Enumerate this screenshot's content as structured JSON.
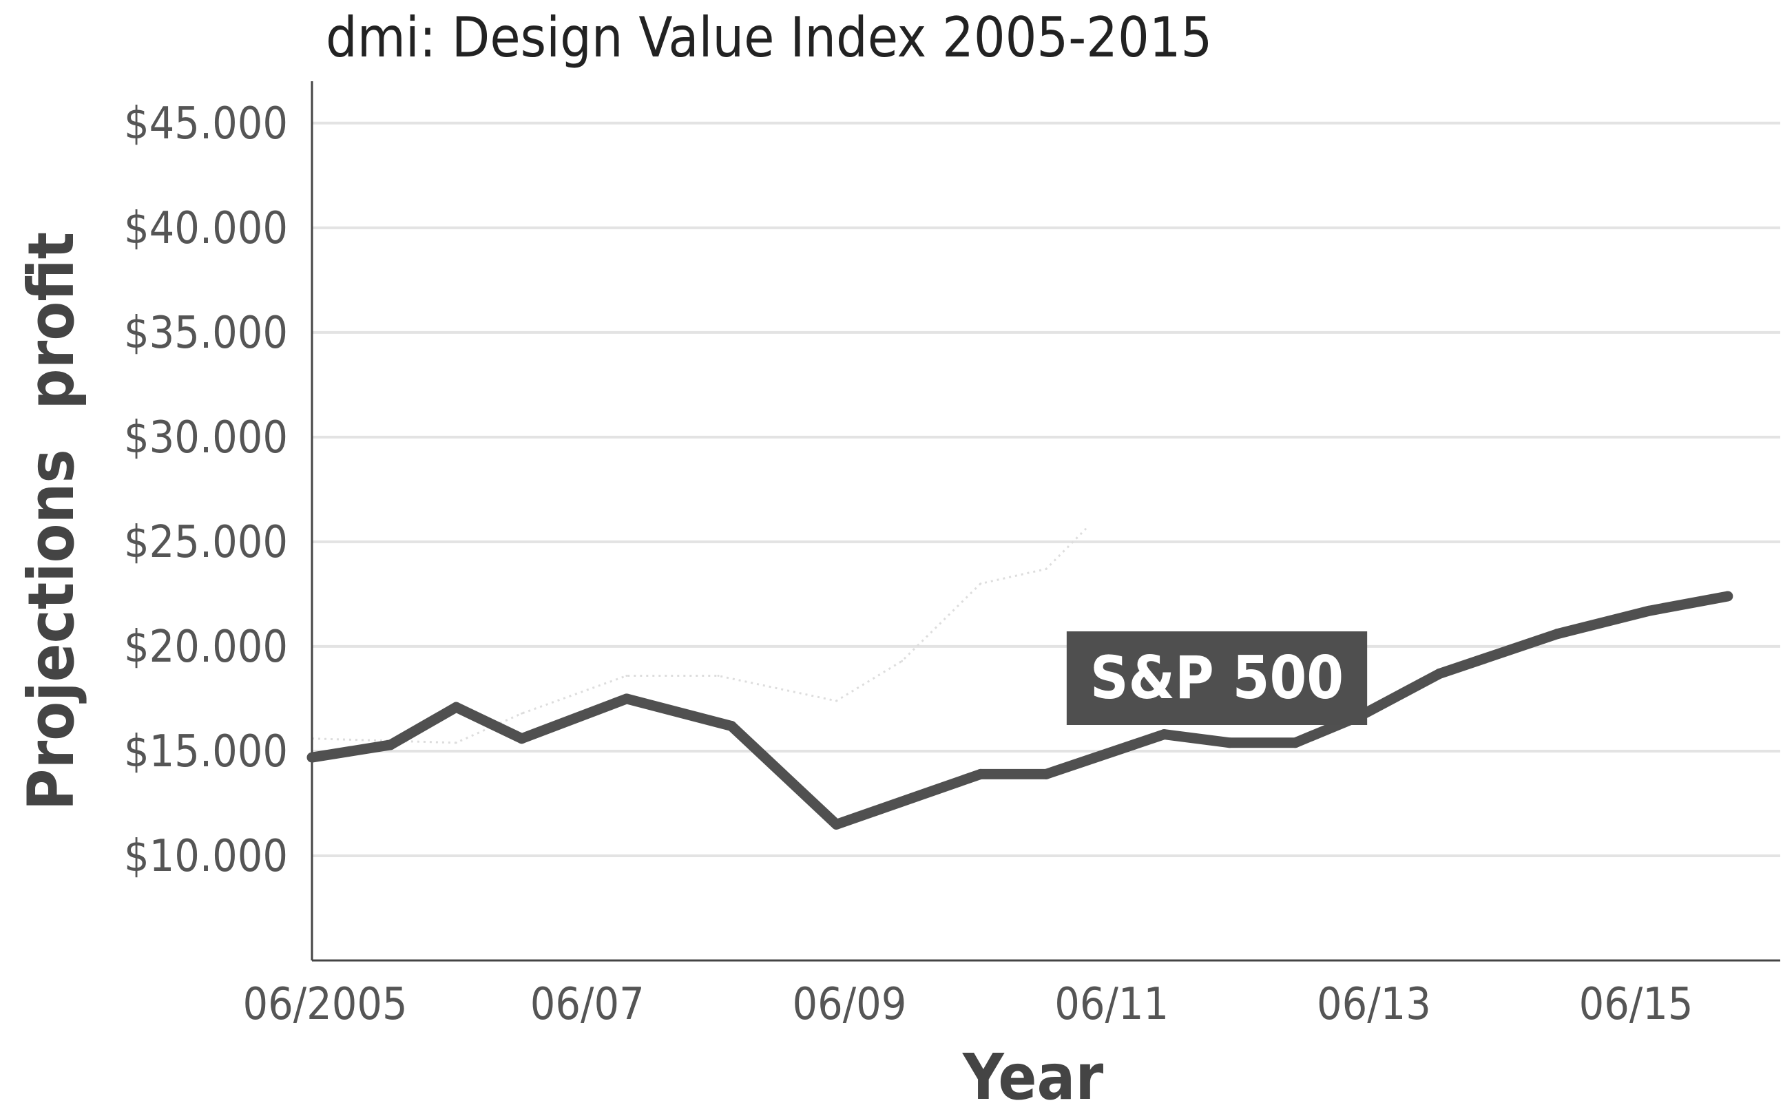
{
  "chart_data": {
    "type": "line",
    "title": "dmi: Design Value Index 2005-2015",
    "xlabel": "Year",
    "ylabel": "Projections  profit",
    "ylim": [
      5000,
      47000
    ],
    "y_ticks": [
      {
        "value": 10000,
        "label": "$10.000"
      },
      {
        "value": 15000,
        "label": "$15.000"
      },
      {
        "value": 20000,
        "label": "$20.000"
      },
      {
        "value": 25000,
        "label": "$25.000"
      },
      {
        "value": 30000,
        "label": "$30.000"
      },
      {
        "value": 35000,
        "label": "$35.000"
      },
      {
        "value": 40000,
        "label": "$40.000"
      },
      {
        "value": 45000,
        "label": "$45.000"
      }
    ],
    "xlim": [
      2005.5,
      2016.7
    ],
    "x_ticks": [
      {
        "value": 2005.6,
        "label": "06/2005"
      },
      {
        "value": 2007.6,
        "label": "06/07"
      },
      {
        "value": 2009.6,
        "label": "06/09"
      },
      {
        "value": 2011.6,
        "label": "06/11"
      },
      {
        "value": 2013.6,
        "label": "06/13"
      },
      {
        "value": 2015.6,
        "label": "06/15"
      }
    ],
    "grid": "horizontal",
    "series": [
      {
        "name": "S&P 500",
        "color": "#505050",
        "x": [
          2005.5,
          2006.1,
          2006.6,
          2007.1,
          2007.9,
          2008.7,
          2009.5,
          2010.6,
          2011.1,
          2012.0,
          2012.5,
          2013.0,
          2013.5,
          2014.1,
          2015.0,
          2015.7,
          2016.3
        ],
        "y": [
          14700,
          15300,
          17100,
          15600,
          17500,
          16200,
          11500,
          13900,
          13900,
          15800,
          15400,
          15400,
          16700,
          18700,
          20600,
          21700,
          22400
        ]
      },
      {
        "name": "dmi",
        "color": "#dddddd",
        "faint": true,
        "x": [
          2005.5,
          2006.6,
          2007.1,
          2007.9,
          2008.6,
          2009.5,
          2010.0,
          2010.6,
          2011.1,
          2011.4
        ],
        "y": [
          15600,
          15400,
          16800,
          18600,
          18600,
          17400,
          19300,
          23000,
          23700,
          25600
        ]
      }
    ],
    "annotations": [
      {
        "text": "S&P 500",
        "series": "S&P 500"
      }
    ]
  }
}
